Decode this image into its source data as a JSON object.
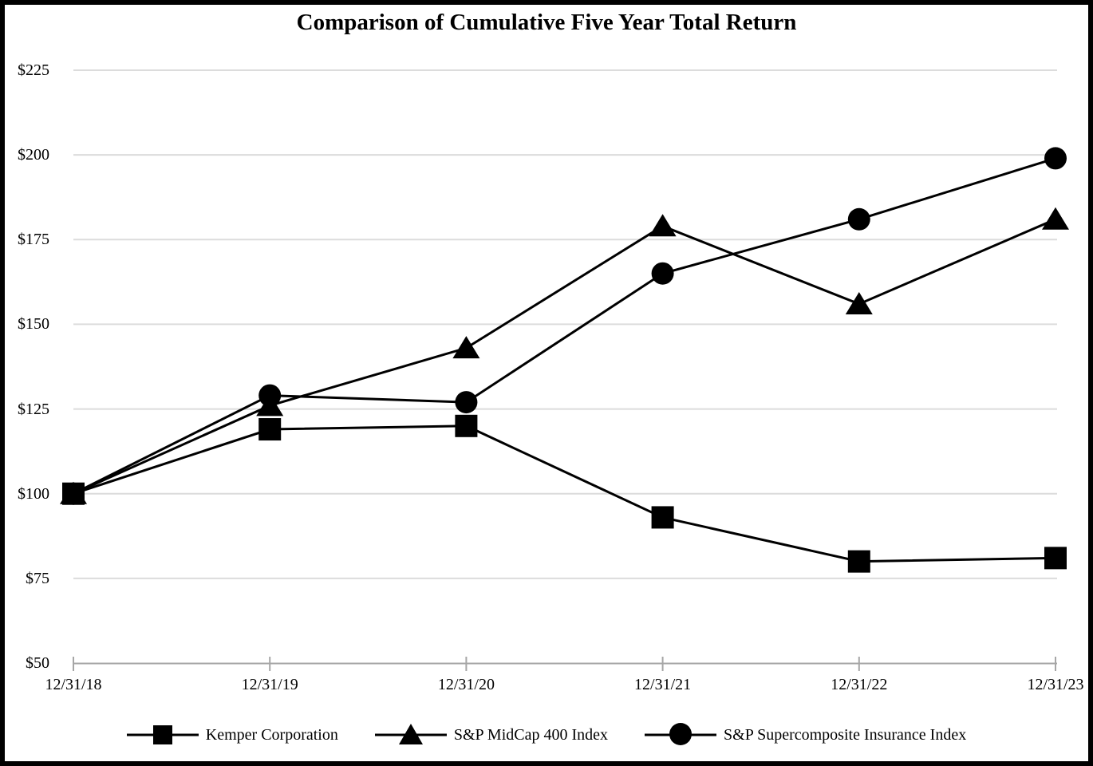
{
  "figure": {
    "title": "Comparison of Cumulative Five Year Total Return"
  },
  "chart_data": {
    "type": "line",
    "title": "Comparison of Cumulative Five Year Total Return",
    "categories": [
      "12/31/18",
      "12/31/19",
      "12/31/20",
      "12/31/21",
      "12/31/22",
      "12/31/23"
    ],
    "series": [
      {
        "name": "Kemper Corporation",
        "marker": "square",
        "values": [
          100,
          119,
          120,
          93,
          80,
          81
        ]
      },
      {
        "name": "S&P MidCap 400 Index",
        "marker": "triangle",
        "values": [
          100,
          126,
          143,
          179,
          156,
          181
        ]
      },
      {
        "name": "S&P Supercomposite Insurance Index",
        "marker": "circle",
        "values": [
          100,
          129,
          127,
          165,
          181,
          199
        ]
      }
    ],
    "xlabel": "",
    "ylabel": "",
    "ylim": [
      50,
      225
    ],
    "ytick_step": 25,
    "ytick_prefix": "$",
    "ytick_labels": [
      "$50",
      "$75",
      "$100",
      "$125",
      "$150",
      "$175",
      "$200",
      "$225"
    ],
    "grid": "horizontal",
    "legend_position": "bottom"
  },
  "style": {
    "series_color": "#000000",
    "gridline_color": "#dcdcdc",
    "axis_color": "#a6a6a6",
    "text_color": "#000000",
    "background": "#ffffff",
    "border_color": "#000000"
  }
}
